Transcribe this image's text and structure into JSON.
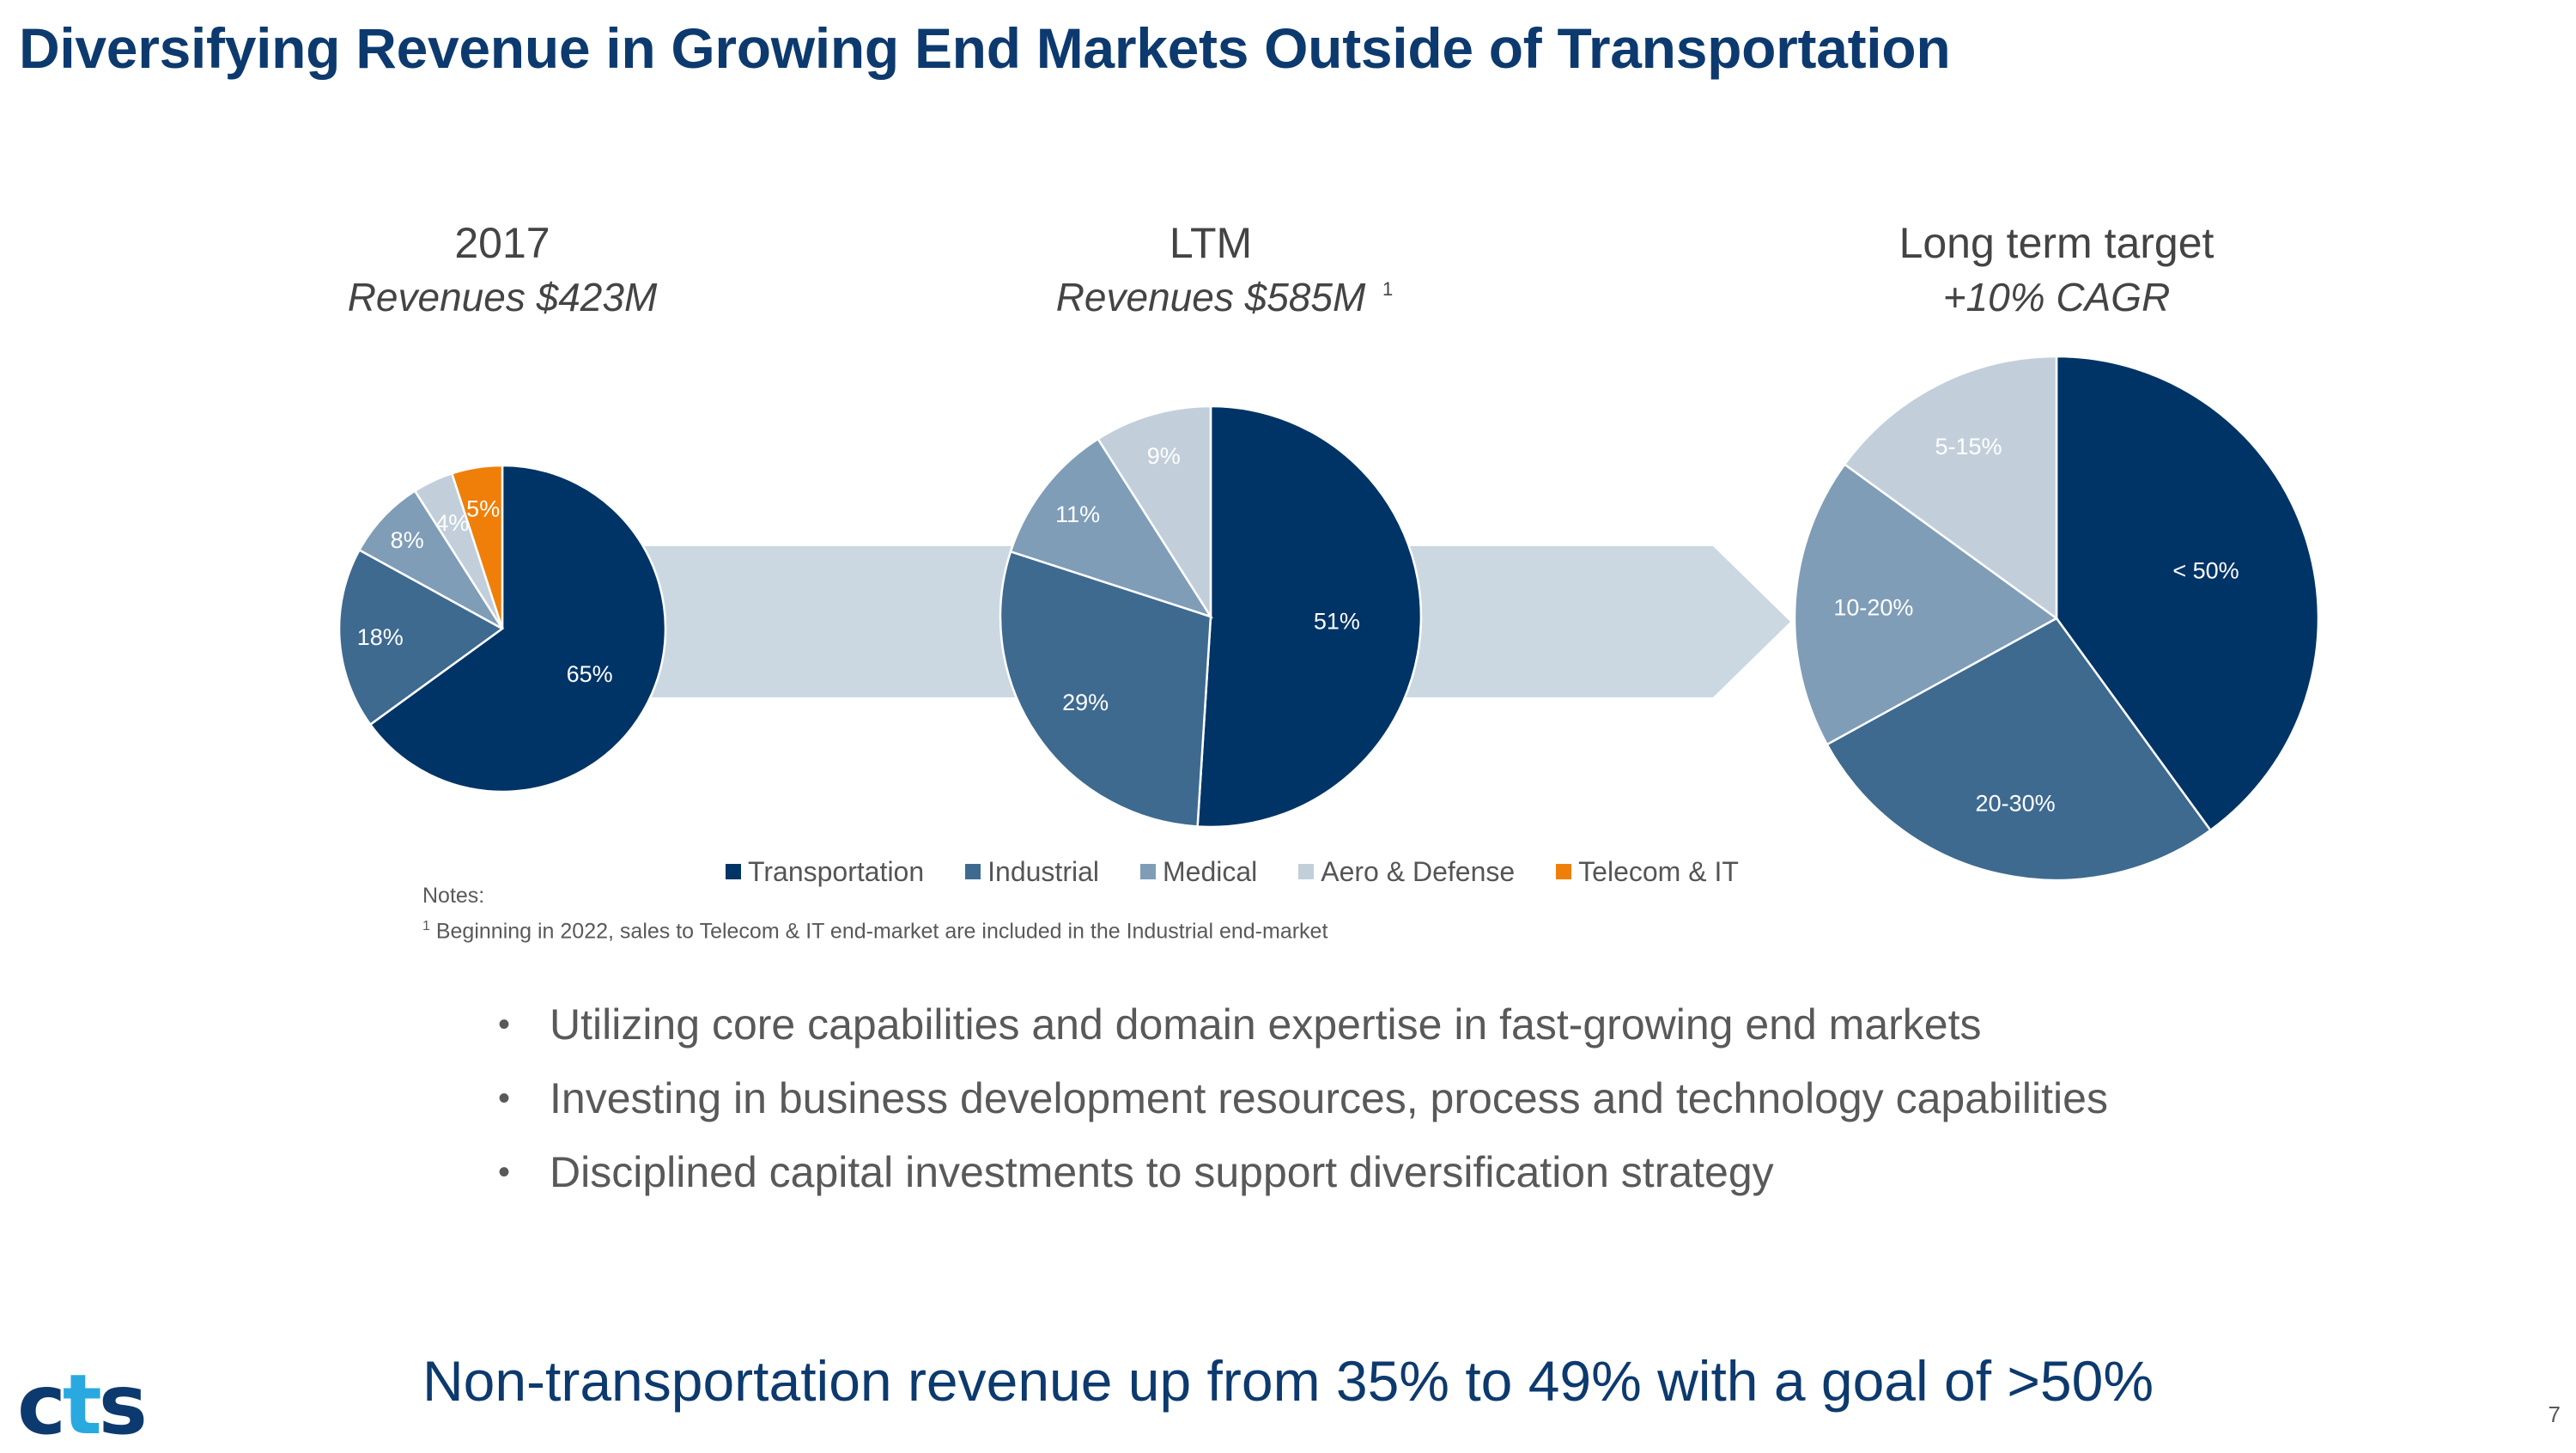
{
  "title": "Diversifying Revenue in Growing End Markets Outside of Transportation",
  "colors": {
    "Transportation": "#003466",
    "Industrial": "#3e6a90",
    "Medical": "#7f9db7",
    "Aero & Defense": "#c2cfdb",
    "Telecom & IT": "#f07f09",
    "arrow": "#cbd8e2"
  },
  "chart_data": [
    {
      "type": "pie",
      "title": "2017",
      "subtitle": "Revenues $423M",
      "subtitle_sup": "",
      "slices": [
        {
          "name": "Transportation",
          "value": 65,
          "label": "65%"
        },
        {
          "name": "Industrial",
          "value": 18,
          "label": "18%"
        },
        {
          "name": "Medical",
          "value": 8,
          "label": "8%"
        },
        {
          "name": "Aero & Defense",
          "value": 4,
          "label": "4%"
        },
        {
          "name": "Telecom & IT",
          "value": 5,
          "label": "5%"
        }
      ]
    },
    {
      "type": "pie",
      "title": "LTM",
      "subtitle": "Revenues $585M",
      "subtitle_sup": "1",
      "slices": [
        {
          "name": "Transportation",
          "value": 51,
          "label": "51%"
        },
        {
          "name": "Industrial",
          "value": 29,
          "label": "29%"
        },
        {
          "name": "Medical",
          "value": 11,
          "label": "11%"
        },
        {
          "name": "Aero & Defense",
          "value": 9,
          "label": "9%"
        }
      ]
    },
    {
      "type": "pie",
      "title": "Long term target",
      "subtitle": "+10% CAGR",
      "subtitle_sup": "",
      "slices": [
        {
          "name": "Transportation",
          "value": 40,
          "label": "< 50%"
        },
        {
          "name": "Industrial",
          "value": 27,
          "label": "20-30%"
        },
        {
          "name": "Medical",
          "value": 18,
          "label": "10-20%"
        },
        {
          "name": "Aero & Defense",
          "value": 15,
          "label": "5-15%"
        }
      ]
    }
  ],
  "legend": [
    "Transportation",
    "Industrial",
    "Medical",
    "Aero & Defense",
    "Telecom & IT"
  ],
  "notes": {
    "heading": "Notes:",
    "footnote_marker": "1",
    "footnote": " Beginning in 2022, sales to Telecom & IT end-market are included in the Industrial end-market"
  },
  "bullets": [
    "Utilizing core capabilities and domain expertise in fast-growing end markets",
    "Investing in business development resources, process and technology capabilities",
    "Disciplined capital investments to support diversification strategy"
  ],
  "bottom_line": "Non-transportation revenue up from 35% to 49% with a goal of >50%",
  "logo": {
    "c": "c",
    "t": "t",
    "s": "s"
  },
  "page_number": "7"
}
